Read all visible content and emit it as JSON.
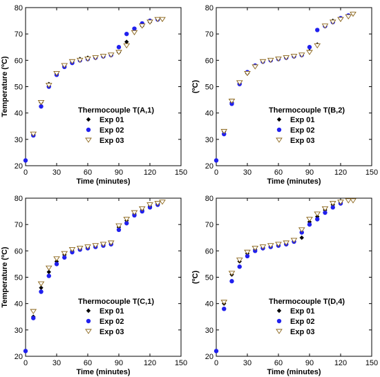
{
  "colors": {
    "exp01": "#000000",
    "exp02": "#2020ee",
    "exp03_stroke": "#8a6418",
    "exp03_fill": "#ffffff",
    "axis": "#000000"
  },
  "chart_data": [
    {
      "type": "scatter",
      "title": "",
      "xlabel": "Time (minutes)",
      "ylabel": "Temperature (ºC)",
      "xlim": [
        0,
        150
      ],
      "ylim": [
        20,
        80
      ],
      "xticks": [
        0,
        30,
        60,
        90,
        120,
        150
      ],
      "yticks": [
        20,
        30,
        40,
        50,
        60,
        70,
        80
      ],
      "grid": false,
      "legend_title": "Thermocouple T(A,1)",
      "legend_placement": "center",
      "series": [
        {
          "name": "Exp 01",
          "marker": "diamond",
          "x": [
            0,
            7.5,
            15,
            22.5,
            30,
            37.5,
            45,
            52.5,
            60,
            67.5,
            75,
            82.5,
            90,
            97.5,
            105,
            112.5,
            120
          ],
          "y": [
            22,
            32,
            44,
            51,
            55,
            58,
            59.5,
            60.5,
            61,
            61,
            61.5,
            62,
            63,
            67,
            71,
            73,
            74.5
          ]
        },
        {
          "name": "Exp 02",
          "marker": "circle",
          "x": [
            0,
            7.5,
            15,
            22.5,
            30,
            37.5,
            45,
            52.5,
            60,
            67.5,
            75,
            82.5,
            90,
            97.5,
            105,
            112.5,
            120,
            127.5
          ],
          "y": [
            22,
            31.5,
            42.5,
            50,
            54.5,
            57.5,
            59,
            60,
            60.5,
            61,
            61.5,
            62,
            65,
            70,
            72,
            74,
            75,
            75.5
          ]
        },
        {
          "name": "Exp 03",
          "marker": "triangle-down",
          "x": [
            7.5,
            15,
            22.5,
            30,
            37.5,
            45,
            52.5,
            60,
            67.5,
            75,
            82.5,
            90,
            97.5,
            105,
            112.5,
            120,
            127.5,
            132
          ],
          "y": [
            32,
            44,
            50.5,
            55,
            58,
            59.5,
            60,
            60.5,
            61,
            61.5,
            62,
            63,
            65.5,
            70.5,
            73,
            74.5,
            75.5,
            75.5
          ]
        }
      ]
    },
    {
      "type": "scatter",
      "title": "",
      "xlabel": "Time (minutes)",
      "ylabel": "(ºC)",
      "xlim": [
        0,
        150
      ],
      "ylim": [
        20,
        80
      ],
      "xticks": [
        0,
        30,
        60,
        90,
        120,
        150
      ],
      "yticks": [
        20,
        30,
        40,
        50,
        60,
        70,
        80
      ],
      "grid": false,
      "legend_title": "Thermocouple T(B,2)",
      "legend_placement": "center",
      "series": [
        {
          "name": "Exp 01",
          "marker": "diamond",
          "x": [
            0,
            7.5,
            15,
            22.5,
            30,
            37.5,
            45,
            52.5,
            60,
            67.5,
            75,
            82.5,
            90,
            97.5,
            105,
            112.5,
            120
          ],
          "y": [
            22,
            33,
            44,
            51,
            55,
            58,
            59.5,
            60,
            60.5,
            61,
            61.5,
            62,
            63.5,
            66,
            73,
            75,
            76
          ]
        },
        {
          "name": "Exp 02",
          "marker": "circle",
          "x": [
            0,
            7.5,
            15,
            22.5,
            30,
            37.5,
            45,
            52.5,
            60,
            67.5,
            75,
            82.5,
            90,
            97.5,
            105,
            112.5,
            120,
            127.5
          ],
          "y": [
            22,
            32,
            43.5,
            51,
            55.5,
            58,
            59.5,
            60,
            60.5,
            61,
            61.5,
            62,
            65,
            71.5,
            73,
            74.5,
            76,
            77
          ]
        },
        {
          "name": "Exp 03",
          "marker": "triangle-down",
          "x": [
            7.5,
            15,
            22.5,
            30,
            37.5,
            45,
            52.5,
            60,
            67.5,
            75,
            82.5,
            90,
            97.5,
            105,
            112.5,
            120,
            127.5,
            132
          ],
          "y": [
            33,
            44.5,
            51.5,
            55,
            57.5,
            59.5,
            60,
            60.5,
            61,
            61.5,
            62,
            63,
            65.5,
            73,
            74.5,
            75.5,
            76.5,
            77.5
          ]
        }
      ]
    },
    {
      "type": "scatter",
      "title": "",
      "xlabel": "Time (minutes)",
      "ylabel": "Temperature (ºC)",
      "xlim": [
        0,
        150
      ],
      "ylim": [
        20,
        80
      ],
      "xticks": [
        0,
        30,
        60,
        90,
        120,
        150
      ],
      "yticks": [
        20,
        30,
        40,
        50,
        60,
        70,
        80
      ],
      "grid": false,
      "legend_title": "Thermocouple T(C,1)",
      "legend_placement": "center",
      "series": [
        {
          "name": "Exp 01",
          "marker": "diamond",
          "x": [
            0,
            7.5,
            15,
            22.5,
            30,
            37.5,
            45,
            52.5,
            60,
            67.5,
            75,
            82.5,
            90,
            97.5,
            105,
            112.5,
            120,
            127.5
          ],
          "y": [
            22,
            35,
            46,
            52,
            56,
            58.5,
            60,
            61,
            61.5,
            62,
            62.5,
            63,
            69,
            71.5,
            74,
            75.5,
            77,
            78
          ]
        },
        {
          "name": "Exp 02",
          "marker": "circle",
          "x": [
            0,
            7.5,
            15,
            22.5,
            30,
            37.5,
            45,
            52.5,
            60,
            67.5,
            75,
            82.5,
            90,
            97.5,
            105,
            112.5,
            120,
            127.5
          ],
          "y": [
            22,
            34.5,
            44.5,
            50.5,
            55,
            57.5,
            59.5,
            60.5,
            61,
            61.5,
            62,
            62.5,
            68,
            70.5,
            73.5,
            75,
            76.5,
            77.5
          ]
        },
        {
          "name": "Exp 03",
          "marker": "triangle-down",
          "x": [
            7.5,
            15,
            22.5,
            30,
            37.5,
            45,
            52.5,
            60,
            67.5,
            75,
            82.5,
            90,
            97.5,
            105,
            112.5,
            120,
            127.5,
            132
          ],
          "y": [
            37,
            47.5,
            53.5,
            57,
            59,
            60.5,
            61,
            61.5,
            62,
            62.5,
            63,
            69.5,
            72,
            74.5,
            76,
            77.5,
            78,
            78.5
          ]
        }
      ]
    },
    {
      "type": "scatter",
      "title": "",
      "xlabel": "Time (minutes)",
      "ylabel": "(ºC)",
      "xlim": [
        0,
        150
      ],
      "ylim": [
        20,
        80
      ],
      "xticks": [
        0,
        30,
        60,
        90,
        120,
        150
      ],
      "yticks": [
        20,
        30,
        40,
        50,
        60,
        70,
        80
      ],
      "grid": false,
      "legend_title": "Thermocouple T(D,4)",
      "legend_placement": "center",
      "series": [
        {
          "name": "Exp 01",
          "marker": "diamond",
          "x": [
            0,
            7.5,
            15,
            22.5,
            30,
            37.5,
            45,
            52.5,
            60,
            67.5,
            75,
            82.5,
            90,
            97.5,
            105,
            112.5,
            120
          ],
          "y": [
            22,
            40,
            51,
            56,
            59,
            60.5,
            61,
            61.5,
            62,
            62.5,
            63.5,
            65,
            71,
            73,
            75.5,
            77.5,
            78.5
          ]
        },
        {
          "name": "Exp 02",
          "marker": "circle",
          "x": [
            0,
            7.5,
            15,
            22.5,
            30,
            37.5,
            45,
            52.5,
            60,
            67.5,
            75,
            82.5,
            90,
            97.5,
            105,
            112.5,
            120
          ],
          "y": [
            22,
            38,
            48.5,
            54,
            58,
            60,
            61,
            61.5,
            62,
            62.5,
            63.5,
            67,
            70,
            72,
            74.5,
            76.5,
            78
          ]
        },
        {
          "name": "Exp 03",
          "marker": "triangle-down",
          "x": [
            7.5,
            15,
            22.5,
            30,
            37.5,
            45,
            52.5,
            60,
            67.5,
            75,
            82.5,
            90,
            97.5,
            105,
            112.5,
            120,
            127.5,
            132
          ],
          "y": [
            40.5,
            51.5,
            56.5,
            59.5,
            61,
            61.5,
            62,
            62.5,
            63,
            64,
            68,
            72,
            74,
            76,
            78,
            78.5,
            79,
            79
          ]
        }
      ]
    }
  ]
}
